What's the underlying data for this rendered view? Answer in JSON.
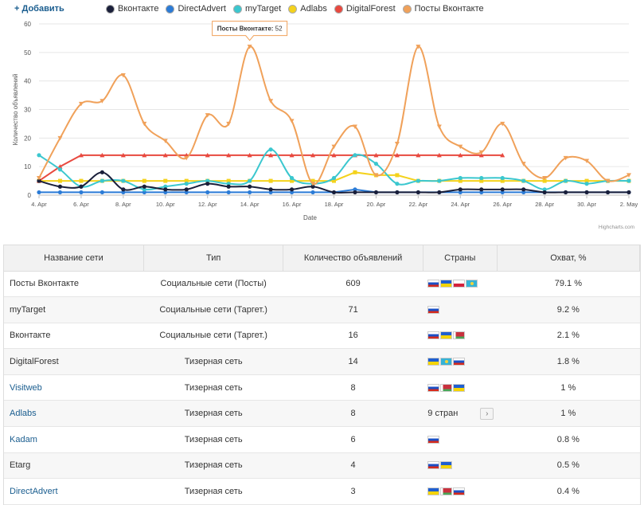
{
  "header": {
    "add_label": "+ Добавить"
  },
  "legend": [
    {
      "name": "Вконтакте",
      "color": "#1a1f3a"
    },
    {
      "name": "DirectAdvert",
      "color": "#2b7bd6"
    },
    {
      "name": "myTarget",
      "color": "#3bc7cf"
    },
    {
      "name": "Adlabs",
      "color": "#f4d21c"
    },
    {
      "name": "DigitalForest",
      "color": "#e8493f"
    },
    {
      "name": "Посты Вконтакте",
      "color": "#f0a15a"
    }
  ],
  "chart_data": {
    "type": "line",
    "xlabel": "Date",
    "ylabel": "Количество объявлений",
    "ylim": [
      0,
      60
    ],
    "yticks": [
      0,
      10,
      20,
      30,
      40,
      50,
      60
    ],
    "x_tick_labels": [
      "4. Apr",
      "6. Apr",
      "8. Apr",
      "10. Apr",
      "12. Apr",
      "14. Apr",
      "16. Apr",
      "18. Apr",
      "20. Apr",
      "22. Apr",
      "24. Apr",
      "26. Apr",
      "28. Apr",
      "30. Apr",
      "2. May"
    ],
    "x_days": [
      "4 Apr",
      "5 Apr",
      "6 Apr",
      "7 Apr",
      "8 Apr",
      "9 Apr",
      "10 Apr",
      "11 Apr",
      "12 Apr",
      "13 Apr",
      "14 Apr",
      "15 Apr",
      "16 Apr",
      "17 Apr",
      "18 Apr",
      "19 Apr",
      "20 Apr",
      "21 Apr",
      "22 Apr",
      "23 Apr",
      "24 Apr",
      "25 Apr",
      "26 Apr",
      "27 Apr",
      "28 Apr",
      "29 Apr",
      "30 Apr",
      "1 May",
      "2 May"
    ],
    "series": [
      {
        "name": "Вконтакте",
        "color": "#1a1f3a",
        "marker": "circle",
        "values": [
          5,
          3,
          3,
          8,
          2,
          3,
          2,
          2,
          4,
          3,
          3,
          2,
          2,
          3,
          1,
          1,
          1,
          1,
          1,
          1,
          2,
          2,
          2,
          2,
          1,
          1,
          1,
          1,
          1
        ]
      },
      {
        "name": "DirectAdvert",
        "color": "#2b7bd6",
        "marker": "circle",
        "values": [
          1,
          1,
          1,
          1,
          1,
          1,
          1,
          1,
          1,
          1,
          1,
          1,
          1,
          1,
          1,
          2,
          1,
          1,
          1,
          1,
          1,
          1,
          1,
          1,
          1,
          1,
          1,
          1,
          1
        ]
      },
      {
        "name": "myTarget",
        "color": "#3bc7cf",
        "marker": "circle",
        "values": [
          14,
          9,
          3,
          5,
          5,
          2,
          3,
          4,
          5,
          4,
          5,
          16,
          6,
          4,
          6,
          14,
          11,
          4,
          5,
          5,
          6,
          6,
          6,
          5,
          2,
          5,
          4,
          5,
          5
        ]
      },
      {
        "name": "Adlabs",
        "color": "#f4d21c",
        "marker": "square",
        "values": [
          5,
          5,
          5,
          5,
          5,
          5,
          5,
          5,
          5,
          5,
          5,
          5,
          5,
          5,
          5,
          8,
          7,
          7,
          5,
          5,
          5,
          5,
          5,
          5,
          5,
          5,
          5,
          5,
          5
        ]
      },
      {
        "name": "DigitalForest",
        "color": "#e8493f",
        "marker": "triangle",
        "values": [
          5,
          10,
          14,
          14,
          14,
          14,
          14,
          14,
          14,
          14,
          14,
          14,
          14,
          14,
          14,
          14,
          14,
          14,
          14,
          14,
          14,
          14,
          14,
          null,
          null,
          null,
          null,
          null,
          null
        ]
      },
      {
        "name": "Посты Вконтакте",
        "color": "#f0a15a",
        "marker": "triangle-down",
        "values": [
          6,
          20,
          32,
          33,
          42,
          25,
          19,
          13,
          28,
          25,
          52,
          33,
          26,
          4,
          17,
          24,
          7,
          18,
          52,
          24,
          17,
          15,
          25,
          11,
          6,
          13,
          12,
          5,
          7
        ]
      }
    ],
    "tooltip": {
      "series": "Посты Вконтакте",
      "value": 52
    }
  },
  "credit": "Highcharts.com",
  "table": {
    "headers": [
      "Название сети",
      "Тип",
      "Количество объявлений",
      "Страны",
      "Охват, %"
    ],
    "rows": [
      {
        "name": "Посты Вконтакте",
        "type": "Социальные сети (Посты)",
        "count": "609",
        "flags": [
          "ru",
          "ua",
          "pl",
          "kz"
        ],
        "reach": "79.1 %",
        "link": false
      },
      {
        "name": "myTarget",
        "type": "Социальные сети (Таргет.)",
        "count": "71",
        "flags": [
          "ru"
        ],
        "reach": "9.2 %",
        "link": false
      },
      {
        "name": "Вконтакте",
        "type": "Социальные сети (Таргет.)",
        "count": "16",
        "flags": [
          "ru",
          "ua",
          "by"
        ],
        "reach": "2.1 %",
        "link": false
      },
      {
        "name": "DigitalForest",
        "type": "Тизерная сеть",
        "count": "14",
        "flags": [
          "ua",
          "kz",
          "ru"
        ],
        "reach": "1.8 %",
        "link": false
      },
      {
        "name": "Visitweb",
        "type": "Тизерная сеть",
        "count": "8",
        "flags": [
          "ru",
          "by",
          "ua"
        ],
        "reach": "1 %",
        "link": true
      },
      {
        "name": "Adlabs",
        "type": "Тизерная сеть",
        "count": "8",
        "more": "9 стран",
        "reach": "1 %",
        "link": true
      },
      {
        "name": "Kadam",
        "type": "Тизерная сеть",
        "count": "6",
        "flags": [
          "ru"
        ],
        "reach": "0.8 %",
        "link": true
      },
      {
        "name": "Etarg",
        "type": "Тизерная сеть",
        "count": "4",
        "flags": [
          "ru",
          "ua"
        ],
        "reach": "0.5 %",
        "link": false
      },
      {
        "name": "DirectAdvert",
        "type": "Тизерная сеть",
        "count": "3",
        "flags": [
          "ua",
          "by",
          "ru"
        ],
        "reach": "0.4 %",
        "link": true
      }
    ]
  }
}
